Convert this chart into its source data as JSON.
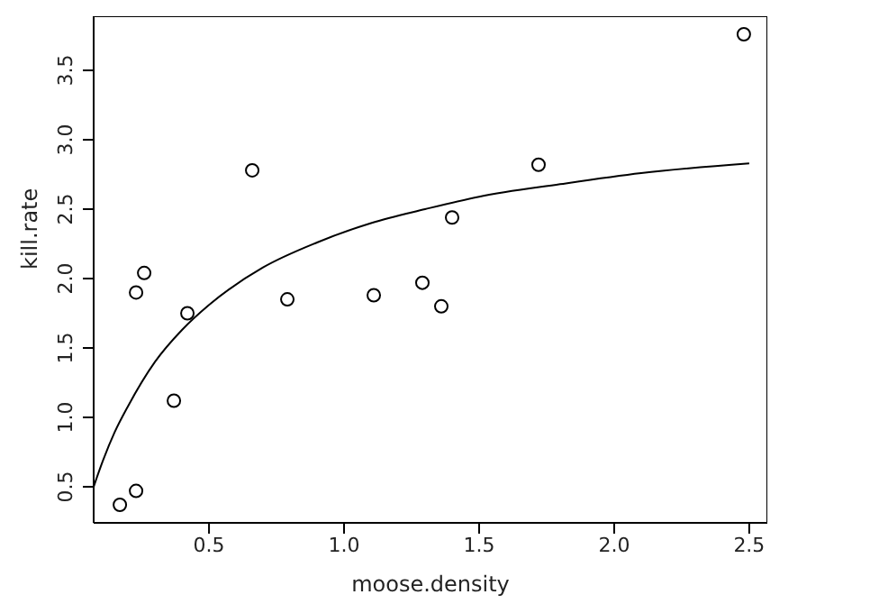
{
  "chart_data": {
    "type": "scatter",
    "xlabel": "moose.density",
    "ylabel": "kill.rate",
    "xlim": [
      0.073,
      2.567
    ],
    "ylim": [
      0.24,
      3.89
    ],
    "xticks": [
      0.5,
      {
        "value": 1,
        "label": "1.0"
      },
      1.5,
      {
        "value": 2,
        "label": "2.0"
      },
      2.5
    ],
    "yticks": [
      0.5,
      {
        "value": 1,
        "label": "1.0"
      },
      1.5,
      {
        "value": 2,
        "label": "2.0"
      },
      2.5,
      {
        "value": 3,
        "label": "3.0"
      },
      3.5
    ],
    "grid": false,
    "legend": false,
    "marker": "circle",
    "series": [
      {
        "color": "#000000",
        "x": [
          0.17,
          0.23,
          0.23,
          0.26,
          0.37,
          0.42,
          0.66,
          0.79,
          1.11,
          1.29,
          1.36,
          1.4,
          1.72,
          2.48
        ],
        "values": [
          0.37,
          0.47,
          1.9,
          2.04,
          1.12,
          1.75,
          2.78,
          1.85,
          1.88,
          1.97,
          1.8,
          2.44,
          2.82,
          3.76
        ]
      },
      {
        "type": "line",
        "color": "#000000",
        "marker": "none",
        "line_style": "solid",
        "x": [
          0.073,
          0.1,
          0.15,
          0.2,
          0.3,
          0.4,
          0.5,
          0.7,
          0.9,
          1.1,
          1.3,
          1.5,
          1.8,
          2.1,
          2.5
        ],
        "values": [
          0.5,
          0.65,
          0.89,
          1.08,
          1.4,
          1.63,
          1.81,
          2.08,
          2.26,
          2.4,
          2.5,
          2.59,
          2.68,
          2.76,
          2.83
        ]
      }
    ]
  }
}
